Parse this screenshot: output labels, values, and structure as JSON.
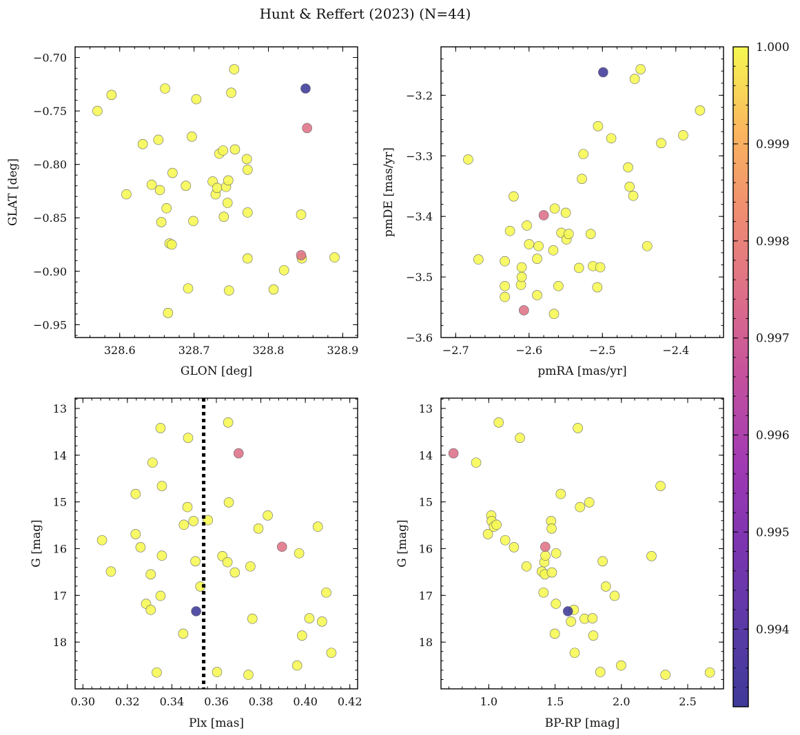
{
  "figure": {
    "title": "Hunt & Reffert (2023) (N=44)"
  },
  "colorbar": {
    "vmin": 0.9932,
    "vmax": 1.0,
    "ticks": [
      0.994,
      0.995,
      0.996,
      0.997,
      0.998,
      0.999,
      1.0
    ],
    "tick_labels": [
      "0.994",
      "0.995",
      "0.996",
      "0.997",
      "0.998",
      "0.999",
      "1.000"
    ],
    "colormap": "plasma"
  },
  "chart_data": [
    {
      "id": "glon-glat",
      "type": "scatter",
      "title": "",
      "xlabel": "GLON [deg]",
      "ylabel": "GLAT [deg]",
      "xlim": [
        328.54,
        328.92
      ],
      "ylim": [
        -0.962,
        -0.69
      ],
      "xticks": [
        328.6,
        328.7,
        328.8,
        328.9
      ],
      "xtick_labels": [
        "328.6",
        "328.7",
        "328.8",
        "328.9"
      ],
      "yticks": [
        -0.95,
        -0.9,
        -0.85,
        -0.8,
        -0.75,
        -0.7
      ],
      "ytick_labels": [
        "−0.95",
        "−0.90",
        "−0.85",
        "−0.80",
        "−0.75",
        "−0.70"
      ],
      "yinvert": false,
      "points": [
        {
          "x": 328.57,
          "y": -0.75,
          "c": 1.0
        },
        {
          "x": 328.589,
          "y": -0.735,
          "c": 1.0
        },
        {
          "x": 328.609,
          "y": -0.828,
          "c": 1.0
        },
        {
          "x": 328.631,
          "y": -0.781,
          "c": 1.0
        },
        {
          "x": 328.643,
          "y": -0.819,
          "c": 1.0
        },
        {
          "x": 328.652,
          "y": -0.777,
          "c": 1.0
        },
        {
          "x": 328.654,
          "y": -0.824,
          "c": 1.0
        },
        {
          "x": 328.656,
          "y": -0.854,
          "c": 1.0
        },
        {
          "x": 328.661,
          "y": -0.729,
          "c": 1.0
        },
        {
          "x": 328.663,
          "y": -0.841,
          "c": 1.0
        },
        {
          "x": 328.665,
          "y": -0.939,
          "c": 1.0
        },
        {
          "x": 328.667,
          "y": -0.874,
          "c": 1.0
        },
        {
          "x": 328.67,
          "y": -0.875,
          "c": 1.0
        },
        {
          "x": 328.671,
          "y": -0.808,
          "c": 1.0
        },
        {
          "x": 328.689,
          "y": -0.82,
          "c": 1.0
        },
        {
          "x": 328.692,
          "y": -0.916,
          "c": 1.0
        },
        {
          "x": 328.697,
          "y": -0.774,
          "c": 1.0
        },
        {
          "x": 328.699,
          "y": -0.853,
          "c": 1.0
        },
        {
          "x": 328.703,
          "y": -0.739,
          "c": 1.0
        },
        {
          "x": 328.725,
          "y": -0.816,
          "c": 1.0
        },
        {
          "x": 328.729,
          "y": -0.828,
          "c": 1.0
        },
        {
          "x": 328.731,
          "y": -0.822,
          "c": 1.0
        },
        {
          "x": 328.734,
          "y": -0.79,
          "c": 1.0
        },
        {
          "x": 328.739,
          "y": -0.787,
          "c": 1.0
        },
        {
          "x": 328.74,
          "y": -0.849,
          "c": 1.0
        },
        {
          "x": 328.743,
          "y": -0.821,
          "c": 1.0
        },
        {
          "x": 328.745,
          "y": -0.836,
          "c": 1.0
        },
        {
          "x": 328.746,
          "y": -0.815,
          "c": 1.0
        },
        {
          "x": 328.747,
          "y": -0.918,
          "c": 1.0
        },
        {
          "x": 328.75,
          "y": -0.733,
          "c": 1.0
        },
        {
          "x": 328.754,
          "y": -0.711,
          "c": 1.0
        },
        {
          "x": 328.755,
          "y": -0.786,
          "c": 1.0
        },
        {
          "x": 328.771,
          "y": -0.795,
          "c": 1.0
        },
        {
          "x": 328.772,
          "y": -0.805,
          "c": 1.0
        },
        {
          "x": 328.772,
          "y": -0.845,
          "c": 1.0
        },
        {
          "x": 328.772,
          "y": -0.888,
          "c": 1.0
        },
        {
          "x": 328.807,
          "y": -0.917,
          "c": 1.0
        },
        {
          "x": 328.821,
          "y": -0.899,
          "c": 1.0
        },
        {
          "x": 328.844,
          "y": -0.847,
          "c": 1.0
        },
        {
          "x": 328.845,
          "y": -0.888,
          "c": 1.0
        },
        {
          "x": 328.889,
          "y": -0.887,
          "c": 1.0
        },
        {
          "x": 328.844,
          "y": -0.885,
          "c": 0.9975
        },
        {
          "x": 328.852,
          "y": -0.766,
          "c": 0.9976
        },
        {
          "x": 328.85,
          "y": -0.729,
          "c": 0.9932
        }
      ]
    },
    {
      "id": "pmra-pmde",
      "type": "scatter",
      "title": "",
      "xlabel": "pmRA [mas/yr]",
      "ylabel": "pmDE [mas/yr]",
      "xlim": [
        -2.72,
        -2.335
      ],
      "ylim": [
        -3.6,
        -3.12
      ],
      "xticks": [
        -2.7,
        -2.6,
        -2.5,
        -2.4
      ],
      "xtick_labels": [
        "−2.7",
        "−2.6",
        "−2.5",
        "−2.4"
      ],
      "yticks": [
        -3.6,
        -3.5,
        -3.4,
        -3.3,
        -3.2
      ],
      "ytick_labels": [
        "−3.6",
        "−3.5",
        "−3.4",
        "−3.3",
        "−3.2"
      ],
      "yinvert": false,
      "points": [
        {
          "x": -2.683,
          "y": -3.306,
          "c": 1.0
        },
        {
          "x": -2.669,
          "y": -3.471,
          "c": 1.0
        },
        {
          "x": -2.633,
          "y": -3.533,
          "c": 1.0
        },
        {
          "x": -2.633,
          "y": -3.515,
          "c": 1.0
        },
        {
          "x": -2.633,
          "y": -3.474,
          "c": 1.0
        },
        {
          "x": -2.626,
          "y": -3.424,
          "c": 1.0
        },
        {
          "x": -2.621,
          "y": -3.367,
          "c": 1.0
        },
        {
          "x": -2.611,
          "y": -3.513,
          "c": 1.0
        },
        {
          "x": -2.61,
          "y": -3.5,
          "c": 1.0
        },
        {
          "x": -2.61,
          "y": -3.484,
          "c": 1.0
        },
        {
          "x": -2.603,
          "y": -3.415,
          "c": 1.0
        },
        {
          "x": -2.6,
          "y": -3.446,
          "c": 1.0
        },
        {
          "x": -2.589,
          "y": -3.53,
          "c": 1.0
        },
        {
          "x": -2.589,
          "y": -3.47,
          "c": 1.0
        },
        {
          "x": -2.587,
          "y": -3.449,
          "c": 1.0
        },
        {
          "x": -2.567,
          "y": -3.456,
          "c": 1.0
        },
        {
          "x": -2.566,
          "y": -3.561,
          "c": 1.0
        },
        {
          "x": -2.565,
          "y": -3.387,
          "c": 1.0
        },
        {
          "x": -2.56,
          "y": -3.515,
          "c": 1.0
        },
        {
          "x": -2.556,
          "y": -3.427,
          "c": 1.0
        },
        {
          "x": -2.55,
          "y": -3.394,
          "c": 1.0
        },
        {
          "x": -2.549,
          "y": -3.438,
          "c": 1.0
        },
        {
          "x": -2.546,
          "y": -3.429,
          "c": 1.0
        },
        {
          "x": -2.532,
          "y": -3.485,
          "c": 1.0
        },
        {
          "x": -2.528,
          "y": -3.338,
          "c": 1.0
        },
        {
          "x": -2.526,
          "y": -3.297,
          "c": 1.0
        },
        {
          "x": -2.516,
          "y": -3.429,
          "c": 1.0
        },
        {
          "x": -2.513,
          "y": -3.482,
          "c": 1.0
        },
        {
          "x": -2.507,
          "y": -3.517,
          "c": 1.0
        },
        {
          "x": -2.506,
          "y": -3.251,
          "c": 1.0
        },
        {
          "x": -2.503,
          "y": -3.484,
          "c": 1.0
        },
        {
          "x": -2.488,
          "y": -3.271,
          "c": 1.0
        },
        {
          "x": -2.465,
          "y": -3.319,
          "c": 1.0
        },
        {
          "x": -2.463,
          "y": -3.351,
          "c": 1.0
        },
        {
          "x": -2.458,
          "y": -3.366,
          "c": 1.0
        },
        {
          "x": -2.456,
          "y": -3.173,
          "c": 1.0
        },
        {
          "x": -2.448,
          "y": -3.157,
          "c": 1.0
        },
        {
          "x": -2.439,
          "y": -3.449,
          "c": 1.0
        },
        {
          "x": -2.42,
          "y": -3.279,
          "c": 1.0
        },
        {
          "x": -2.39,
          "y": -3.266,
          "c": 1.0
        },
        {
          "x": -2.367,
          "y": -3.225,
          "c": 1.0
        },
        {
          "x": -2.58,
          "y": -3.398,
          "c": 0.9975
        },
        {
          "x": -2.607,
          "y": -3.555,
          "c": 0.9976
        },
        {
          "x": -2.499,
          "y": -3.162,
          "c": 0.9932
        }
      ]
    },
    {
      "id": "plx-g",
      "type": "scatter",
      "title": "",
      "xlabel": "Plx [mas]",
      "ylabel": "G [mag]",
      "xlim": [
        0.2965,
        0.4235
      ],
      "ylim": [
        12.78,
        19.0
      ],
      "xticks": [
        0.3,
        0.32,
        0.34,
        0.36,
        0.38,
        0.4,
        0.42
      ],
      "xtick_labels": [
        "0.30",
        "0.32",
        "0.34",
        "0.36",
        "0.38",
        "0.40",
        "0.42"
      ],
      "yticks": [
        13,
        14,
        15,
        16,
        17,
        18
      ],
      "ytick_labels": [
        "13",
        "14",
        "15",
        "16",
        "17",
        "18"
      ],
      "yinvert": true,
      "vline": 0.3543,
      "points": [
        {
          "x": 0.3086,
          "y": 15.82,
          "c": 1.0
        },
        {
          "x": 0.3126,
          "y": 16.49,
          "c": 1.0
        },
        {
          "x": 0.3237,
          "y": 15.69,
          "c": 1.0
        },
        {
          "x": 0.3237,
          "y": 14.83,
          "c": 1.0
        },
        {
          "x": 0.3259,
          "y": 15.97,
          "c": 1.0
        },
        {
          "x": 0.3284,
          "y": 17.18,
          "c": 1.0
        },
        {
          "x": 0.3305,
          "y": 16.55,
          "c": 1.0
        },
        {
          "x": 0.3305,
          "y": 17.31,
          "c": 1.0
        },
        {
          "x": 0.3313,
          "y": 14.16,
          "c": 1.0
        },
        {
          "x": 0.3332,
          "y": 18.65,
          "c": 1.0
        },
        {
          "x": 0.3349,
          "y": 13.42,
          "c": 1.0
        },
        {
          "x": 0.3349,
          "y": 17.01,
          "c": 1.0
        },
        {
          "x": 0.3355,
          "y": 16.15,
          "c": 1.0
        },
        {
          "x": 0.3355,
          "y": 14.66,
          "c": 1.0
        },
        {
          "x": 0.3451,
          "y": 17.82,
          "c": 1.0
        },
        {
          "x": 0.3454,
          "y": 15.49,
          "c": 1.0
        },
        {
          "x": 0.347,
          "y": 15.11,
          "c": 1.0
        },
        {
          "x": 0.3473,
          "y": 13.63,
          "c": 1.0
        },
        {
          "x": 0.3497,
          "y": 15.41,
          "c": 1.0
        },
        {
          "x": 0.3506,
          "y": 16.27,
          "c": 1.0
        },
        {
          "x": 0.3528,
          "y": 16.81,
          "c": 1.0
        },
        {
          "x": 0.3562,
          "y": 15.39,
          "c": 1.0
        },
        {
          "x": 0.3603,
          "y": 18.64,
          "c": 1.0
        },
        {
          "x": 0.3627,
          "y": 16.16,
          "c": 1.0
        },
        {
          "x": 0.365,
          "y": 16.29,
          "c": 1.0
        },
        {
          "x": 0.3653,
          "y": 13.3,
          "c": 1.0
        },
        {
          "x": 0.3656,
          "y": 15.01,
          "c": 1.0
        },
        {
          "x": 0.3683,
          "y": 16.51,
          "c": 1.0
        },
        {
          "x": 0.3744,
          "y": 18.7,
          "c": 1.0
        },
        {
          "x": 0.3753,
          "y": 16.38,
          "c": 1.0
        },
        {
          "x": 0.3762,
          "y": 17.5,
          "c": 1.0
        },
        {
          "x": 0.3789,
          "y": 15.57,
          "c": 1.0
        },
        {
          "x": 0.3831,
          "y": 15.29,
          "c": 1.0
        },
        {
          "x": 0.3963,
          "y": 18.5,
          "c": 1.0
        },
        {
          "x": 0.3972,
          "y": 16.1,
          "c": 1.0
        },
        {
          "x": 0.3985,
          "y": 17.86,
          "c": 1.0
        },
        {
          "x": 0.4018,
          "y": 17.49,
          "c": 1.0
        },
        {
          "x": 0.4056,
          "y": 15.53,
          "c": 1.0
        },
        {
          "x": 0.4075,
          "y": 17.56,
          "c": 1.0
        },
        {
          "x": 0.4094,
          "y": 16.94,
          "c": 1.0
        },
        {
          "x": 0.4117,
          "y": 18.23,
          "c": 1.0
        },
        {
          "x": 0.37,
          "y": 13.96,
          "c": 0.9975
        },
        {
          "x": 0.3895,
          "y": 15.96,
          "c": 0.9976
        },
        {
          "x": 0.3509,
          "y": 17.34,
          "c": 0.9932
        }
      ]
    },
    {
      "id": "color-magnitude",
      "type": "scatter",
      "title": "",
      "xlabel": "BP-RP [mag]",
      "ylabel": "G [mag]",
      "xlim": [
        0.64,
        2.77
      ],
      "ylim": [
        12.78,
        19.0
      ],
      "xticks": [
        1.0,
        1.5,
        2.0,
        2.5
      ],
      "xtick_labels": [
        "1.0",
        "1.5",
        "2.0",
        "2.5"
      ],
      "yticks": [
        13,
        14,
        15,
        16,
        17,
        18
      ],
      "ytick_labels": [
        "13",
        "14",
        "15",
        "16",
        "17",
        "18"
      ],
      "yinvert": true,
      "points": [
        {
          "x": 0.905,
          "y": 14.16,
          "c": 1.0
        },
        {
          "x": 0.994,
          "y": 15.69,
          "c": 1.0
        },
        {
          "x": 1.019,
          "y": 15.29,
          "c": 1.0
        },
        {
          "x": 1.022,
          "y": 15.41,
          "c": 1.0
        },
        {
          "x": 1.039,
          "y": 15.53,
          "c": 1.0
        },
        {
          "x": 1.059,
          "y": 15.49,
          "c": 1.0
        },
        {
          "x": 1.075,
          "y": 13.3,
          "c": 1.0
        },
        {
          "x": 1.124,
          "y": 15.82,
          "c": 1.0
        },
        {
          "x": 1.19,
          "y": 15.97,
          "c": 1.0
        },
        {
          "x": 1.235,
          "y": 13.63,
          "c": 1.0
        },
        {
          "x": 1.285,
          "y": 16.38,
          "c": 1.0
        },
        {
          "x": 1.4,
          "y": 16.49,
          "c": 1.0
        },
        {
          "x": 1.413,
          "y": 16.94,
          "c": 1.0
        },
        {
          "x": 1.419,
          "y": 16.29,
          "c": 1.0
        },
        {
          "x": 1.423,
          "y": 16.55,
          "c": 1.0
        },
        {
          "x": 1.427,
          "y": 16.15,
          "c": 1.0
        },
        {
          "x": 1.47,
          "y": 15.41,
          "c": 1.0
        },
        {
          "x": 1.474,
          "y": 15.57,
          "c": 1.0
        },
        {
          "x": 1.476,
          "y": 16.51,
          "c": 1.0
        },
        {
          "x": 1.498,
          "y": 17.82,
          "c": 1.0
        },
        {
          "x": 1.506,
          "y": 17.18,
          "c": 1.0
        },
        {
          "x": 1.508,
          "y": 16.1,
          "c": 1.0
        },
        {
          "x": 1.543,
          "y": 14.83,
          "c": 1.0
        },
        {
          "x": 1.62,
          "y": 17.56,
          "c": 1.0
        },
        {
          "x": 1.642,
          "y": 17.31,
          "c": 1.0
        },
        {
          "x": 1.648,
          "y": 18.23,
          "c": 1.0
        },
        {
          "x": 1.672,
          "y": 13.42,
          "c": 1.0
        },
        {
          "x": 1.688,
          "y": 15.11,
          "c": 1.0
        },
        {
          "x": 1.723,
          "y": 17.5,
          "c": 1.0
        },
        {
          "x": 1.758,
          "y": 15.01,
          "c": 1.0
        },
        {
          "x": 1.782,
          "y": 17.49,
          "c": 1.0
        },
        {
          "x": 1.788,
          "y": 17.86,
          "c": 1.0
        },
        {
          "x": 1.841,
          "y": 18.64,
          "c": 1.0
        },
        {
          "x": 1.859,
          "y": 16.27,
          "c": 1.0
        },
        {
          "x": 1.883,
          "y": 16.81,
          "c": 1.0
        },
        {
          "x": 1.949,
          "y": 17.01,
          "c": 1.0
        },
        {
          "x": 1.998,
          "y": 18.5,
          "c": 1.0
        },
        {
          "x": 2.227,
          "y": 16.16,
          "c": 1.0
        },
        {
          "x": 2.295,
          "y": 14.66,
          "c": 1.0
        },
        {
          "x": 2.332,
          "y": 18.7,
          "c": 1.0
        },
        {
          "x": 2.667,
          "y": 18.65,
          "c": 1.0
        },
        {
          "x": 0.734,
          "y": 13.96,
          "c": 0.9975
        },
        {
          "x": 1.426,
          "y": 15.96,
          "c": 0.9976
        },
        {
          "x": 1.597,
          "y": 17.34,
          "c": 0.9932
        }
      ]
    }
  ]
}
